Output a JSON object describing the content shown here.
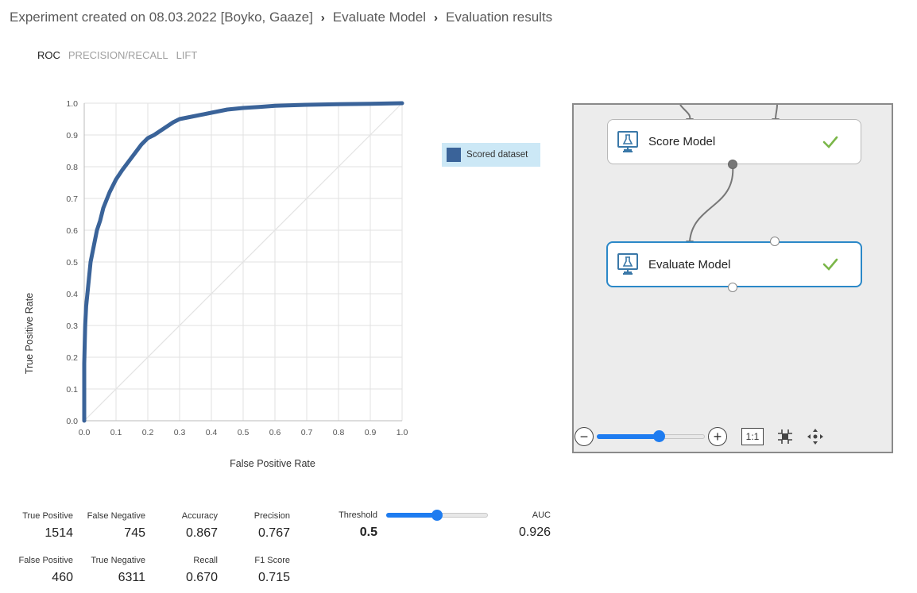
{
  "breadcrumb": {
    "items": [
      "Experiment created on 08.03.2022 [Boyko, Gaaze]",
      "Evaluate Model",
      "Evaluation results"
    ],
    "separator": "›"
  },
  "tabs": [
    {
      "label": "ROC",
      "active": true
    },
    {
      "label": "PRECISION/RECALL",
      "active": false
    },
    {
      "label": "LIFT",
      "active": false
    }
  ],
  "chart_data": {
    "type": "line",
    "title": "",
    "xlabel": "False Positive Rate",
    "ylabel": "True Positive Rate",
    "xlim": [
      0,
      1
    ],
    "ylim": [
      0,
      1
    ],
    "xticks": [
      "0.0",
      "0.1",
      "0.2",
      "0.3",
      "0.4",
      "0.5",
      "0.6",
      "0.7",
      "0.8",
      "0.9",
      "1.0"
    ],
    "yticks": [
      "0.0",
      "0.1",
      "0.2",
      "0.3",
      "0.4",
      "0.5",
      "0.6",
      "0.7",
      "0.8",
      "0.9",
      "1.0"
    ],
    "grid": true,
    "legend_position": "right",
    "series": [
      {
        "name": "Scored dataset",
        "color": "#3a6399",
        "x": [
          0.0,
          0.0,
          0.003,
          0.006,
          0.01,
          0.015,
          0.02,
          0.03,
          0.04,
          0.05,
          0.06,
          0.08,
          0.1,
          0.12,
          0.15,
          0.18,
          0.2,
          0.22,
          0.25,
          0.28,
          0.3,
          0.35,
          0.4,
          0.45,
          0.5,
          0.55,
          0.6,
          0.7,
          0.8,
          0.9,
          1.0
        ],
        "y": [
          0.0,
          0.18,
          0.3,
          0.36,
          0.4,
          0.45,
          0.5,
          0.55,
          0.6,
          0.63,
          0.67,
          0.72,
          0.76,
          0.79,
          0.83,
          0.87,
          0.89,
          0.9,
          0.92,
          0.94,
          0.95,
          0.96,
          0.97,
          0.98,
          0.985,
          0.988,
          0.992,
          0.995,
          0.997,
          0.998,
          1.0
        ]
      },
      {
        "name": "",
        "color": "#e3e3e3",
        "x": [
          0,
          1
        ],
        "y": [
          0,
          1
        ]
      }
    ]
  },
  "canvas": {
    "modules": [
      {
        "label": "Score Model",
        "status": "check-icon",
        "selected": false
      },
      {
        "label": "Evaluate Model",
        "status": "check-icon",
        "selected": true
      }
    ],
    "zoom": {
      "level": 0.57,
      "reset_label": "1:1"
    },
    "accent_color": "#2b88c8",
    "check_color": "#7ab648"
  },
  "metrics": {
    "true_positive": {
      "label": "True Positive",
      "value": "1514"
    },
    "false_negative": {
      "label": "False Negative",
      "value": "745"
    },
    "accuracy": {
      "label": "Accuracy",
      "value": "0.867"
    },
    "precision": {
      "label": "Precision",
      "value": "0.767"
    },
    "threshold": {
      "label": "Threshold",
      "value": "0.5",
      "slider_level": 0.5
    },
    "auc": {
      "label": "AUC",
      "value": "0.926"
    },
    "false_positive": {
      "label": "False Positive",
      "value": "460"
    },
    "true_negative": {
      "label": "True Negative",
      "value": "6311"
    },
    "recall": {
      "label": "Recall",
      "value": "0.670"
    },
    "f1_score": {
      "label": "F1 Score",
      "value": "0.715"
    }
  }
}
